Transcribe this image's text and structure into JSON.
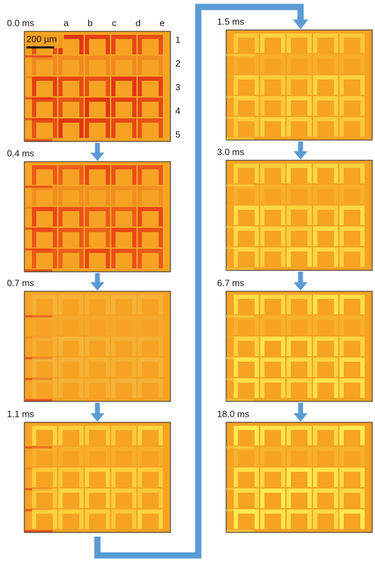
{
  "panels": [
    {
      "label": "0.0 ms"
    },
    {
      "label": "0.4 ms"
    },
    {
      "label": "0.7 ms"
    },
    {
      "label": "1.1 ms"
    },
    {
      "label": "1.5 ms"
    },
    {
      "label": "3.0 ms"
    },
    {
      "label": "6.7 ms"
    },
    {
      "label": "18.0 ms"
    }
  ],
  "columns": [
    "a",
    "b",
    "c",
    "d",
    "e"
  ],
  "rows": [
    "1",
    "2",
    "3",
    "4",
    "5"
  ],
  "scale_bar": "200 µm"
}
